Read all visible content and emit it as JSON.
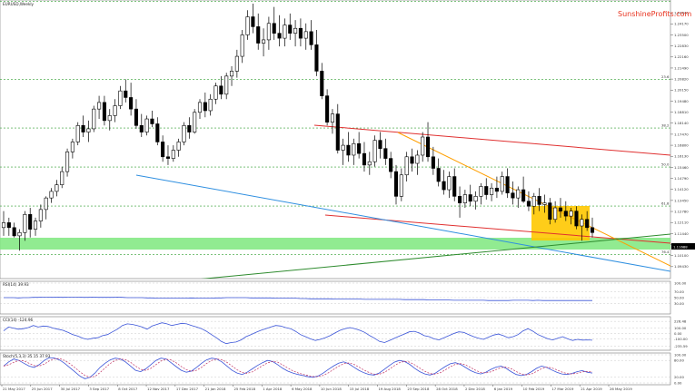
{
  "header": {
    "symbol_title": "EURUSD,Weekly",
    "brand": "SunshineProfits.com"
  },
  "colors": {
    "bull_candle": "#ffffff",
    "bear_candle": "#000000",
    "support_zone": "#7ee87e",
    "highlight_box": "#ffc800",
    "red_channel": "#e03030",
    "orange_line": "#ff9f00",
    "blue_line": "#2f8fe0",
    "green_line": "#2e8b2e",
    "oscillator_main": "#3a54d8",
    "oscillator_signal": "#c03060"
  },
  "chart_data": {
    "type": "candlestick",
    "x_labels": [
      "21 May 2017",
      "25 Jun 2017",
      "30 Jul 2017",
      "3 Sep 2017",
      "8 Oct 2017",
      "12 Nov 2017",
      "17 Dec 2017",
      "21 Jan 2018",
      "25 Feb 2018",
      "1 Apr 2018",
      "6 May 2018",
      "10 Jun 2018",
      "15 Jul 2018",
      "19 Aug 2018",
      "23 Sep 2018",
      "28 Oct 2018",
      "2 Dec 2018",
      "6 Jan 2019",
      "10 Feb 2019",
      "17 Mar 2019",
      "21 Apr 2019",
      "26 May 2019"
    ],
    "y_ticks": [
      "1.25510",
      "1.24840",
      "1.24170",
      "1.23500",
      "1.22830",
      "1.22160",
      "1.21490",
      "1.20820",
      "1.20150",
      "1.19480",
      "1.18810",
      "1.18140",
      "1.17470",
      "1.16800",
      "1.16130",
      "1.15460",
      "1.14790",
      "1.14120",
      "1.13450",
      "1.12780",
      "1.12110",
      "1.11440",
      "1.10770",
      "1.10100",
      "1.09430",
      "1.08760"
    ],
    "y_range": [
      1.0876,
      1.2551
    ],
    "current_price": "1.11688",
    "fib_labels": [
      "0.0",
      "23.6",
      "38.2",
      "50.0",
      "61.8",
      "76.4"
    ],
    "fib_levels": [
      1.2555,
      1.2079,
      1.1785,
      1.1548,
      1.1311,
      1.1016
    ],
    "candles": [
      [
        1.118,
        1.128,
        1.113,
        1.121
      ],
      [
        1.121,
        1.124,
        1.113,
        1.118
      ],
      [
        1.118,
        1.121,
        1.112,
        1.113
      ],
      [
        1.113,
        1.117,
        1.104,
        1.115
      ],
      [
        1.115,
        1.128,
        1.11,
        1.126
      ],
      [
        1.126,
        1.13,
        1.112,
        1.117
      ],
      [
        1.117,
        1.124,
        1.113,
        1.122
      ],
      [
        1.122,
        1.132,
        1.118,
        1.129
      ],
      [
        1.129,
        1.137,
        1.123,
        1.136
      ],
      [
        1.136,
        1.142,
        1.133,
        1.14
      ],
      [
        1.14,
        1.147,
        1.137,
        1.144
      ],
      [
        1.144,
        1.155,
        1.142,
        1.152
      ],
      [
        1.152,
        1.166,
        1.149,
        1.164
      ],
      [
        1.164,
        1.172,
        1.16,
        1.17
      ],
      [
        1.17,
        1.182,
        1.168,
        1.18
      ],
      [
        1.18,
        1.186,
        1.173,
        1.176
      ],
      [
        1.176,
        1.183,
        1.17,
        1.178
      ],
      [
        1.178,
        1.192,
        1.176,
        1.19
      ],
      [
        1.19,
        1.198,
        1.184,
        1.194
      ],
      [
        1.194,
        1.198,
        1.18,
        1.183
      ],
      [
        1.183,
        1.19,
        1.177,
        1.186
      ],
      [
        1.186,
        1.196,
        1.182,
        1.192
      ],
      [
        1.192,
        1.204,
        1.19,
        1.201
      ],
      [
        1.201,
        1.208,
        1.194,
        1.197
      ],
      [
        1.197,
        1.206,
        1.186,
        1.19
      ],
      [
        1.19,
        1.196,
        1.178,
        1.18
      ],
      [
        1.18,
        1.187,
        1.173,
        1.176
      ],
      [
        1.176,
        1.186,
        1.174,
        1.184
      ],
      [
        1.184,
        1.189,
        1.179,
        1.181
      ],
      [
        1.181,
        1.185,
        1.168,
        1.17
      ],
      [
        1.17,
        1.174,
        1.158,
        1.161
      ],
      [
        1.161,
        1.168,
        1.156,
        1.16
      ],
      [
        1.16,
        1.168,
        1.158,
        1.165
      ],
      [
        1.165,
        1.172,
        1.161,
        1.17
      ],
      [
        1.17,
        1.182,
        1.168,
        1.18
      ],
      [
        1.18,
        1.185,
        1.172,
        1.176
      ],
      [
        1.176,
        1.19,
        1.175,
        1.188
      ],
      [
        1.188,
        1.196,
        1.184,
        1.194
      ],
      [
        1.194,
        1.2,
        1.185,
        1.189
      ],
      [
        1.189,
        1.199,
        1.186,
        1.196
      ],
      [
        1.196,
        1.206,
        1.193,
        1.204
      ],
      [
        1.204,
        1.21,
        1.196,
        1.199
      ],
      [
        1.199,
        1.212,
        1.196,
        1.21
      ],
      [
        1.21,
        1.216,
        1.204,
        1.213
      ],
      [
        1.213,
        1.226,
        1.209,
        1.222
      ],
      [
        1.222,
        1.238,
        1.218,
        1.235
      ],
      [
        1.235,
        1.25,
        1.232,
        1.246
      ],
      [
        1.246,
        1.254,
        1.236,
        1.24
      ],
      [
        1.24,
        1.248,
        1.226,
        1.23
      ],
      [
        1.23,
        1.239,
        1.222,
        1.232
      ],
      [
        1.232,
        1.246,
        1.226,
        1.242
      ],
      [
        1.242,
        1.252,
        1.232,
        1.236
      ],
      [
        1.236,
        1.247,
        1.228,
        1.233
      ],
      [
        1.233,
        1.245,
        1.228,
        1.241
      ],
      [
        1.241,
        1.248,
        1.232,
        1.236
      ],
      [
        1.236,
        1.244,
        1.228,
        1.239
      ],
      [
        1.239,
        1.245,
        1.228,
        1.233
      ],
      [
        1.233,
        1.242,
        1.226,
        1.237
      ],
      [
        1.237,
        1.244,
        1.226,
        1.229
      ],
      [
        1.229,
        1.238,
        1.21,
        1.213
      ],
      [
        1.213,
        1.218,
        1.196,
        1.198
      ],
      [
        1.198,
        1.202,
        1.18,
        1.182
      ],
      [
        1.182,
        1.19,
        1.175,
        1.187
      ],
      [
        1.187,
        1.193,
        1.163,
        1.165
      ],
      [
        1.165,
        1.172,
        1.156,
        1.168
      ],
      [
        1.168,
        1.176,
        1.158,
        1.162
      ],
      [
        1.162,
        1.172,
        1.156,
        1.169
      ],
      [
        1.169,
        1.176,
        1.16,
        1.163
      ],
      [
        1.163,
        1.17,
        1.152,
        1.156
      ],
      [
        1.156,
        1.164,
        1.15,
        1.158
      ],
      [
        1.158,
        1.174,
        1.155,
        1.171
      ],
      [
        1.171,
        1.176,
        1.16,
        1.166
      ],
      [
        1.166,
        1.172,
        1.156,
        1.16
      ],
      [
        1.16,
        1.164,
        1.148,
        1.152
      ],
      [
        1.152,
        1.156,
        1.132,
        1.137
      ],
      [
        1.137,
        1.154,
        1.134,
        1.15
      ],
      [
        1.15,
        1.164,
        1.146,
        1.161
      ],
      [
        1.161,
        1.166,
        1.152,
        1.157
      ],
      [
        1.157,
        1.165,
        1.15,
        1.162
      ],
      [
        1.162,
        1.176,
        1.158,
        1.173
      ],
      [
        1.173,
        1.182,
        1.158,
        1.161
      ],
      [
        1.161,
        1.167,
        1.15,
        1.154
      ],
      [
        1.154,
        1.16,
        1.143,
        1.146
      ],
      [
        1.146,
        1.153,
        1.138,
        1.141
      ],
      [
        1.141,
        1.152,
        1.136,
        1.149
      ],
      [
        1.149,
        1.154,
        1.134,
        1.137
      ],
      [
        1.137,
        1.143,
        1.124,
        1.133
      ],
      [
        1.133,
        1.141,
        1.13,
        1.138
      ],
      [
        1.138,
        1.144,
        1.131,
        1.134
      ],
      [
        1.134,
        1.14,
        1.129,
        1.137
      ],
      [
        1.137,
        1.145,
        1.132,
        1.143
      ],
      [
        1.143,
        1.148,
        1.135,
        1.138
      ],
      [
        1.138,
        1.145,
        1.134,
        1.142
      ],
      [
        1.142,
        1.149,
        1.136,
        1.14
      ],
      [
        1.14,
        1.152,
        1.138,
        1.149
      ],
      [
        1.149,
        1.154,
        1.136,
        1.139
      ],
      [
        1.139,
        1.146,
        1.132,
        1.136
      ],
      [
        1.136,
        1.143,
        1.13,
        1.141
      ],
      [
        1.141,
        1.149,
        1.133,
        1.134
      ],
      [
        1.134,
        1.14,
        1.128,
        1.131
      ],
      [
        1.131,
        1.139,
        1.126,
        1.137
      ],
      [
        1.137,
        1.142,
        1.128,
        1.132
      ],
      [
        1.132,
        1.138,
        1.127,
        1.133
      ],
      [
        1.133,
        1.136,
        1.12,
        1.123
      ],
      [
        1.123,
        1.134,
        1.121,
        1.13
      ],
      [
        1.13,
        1.136,
        1.124,
        1.128
      ],
      [
        1.128,
        1.134,
        1.122,
        1.125
      ],
      [
        1.125,
        1.13,
        1.12,
        1.128
      ],
      [
        1.128,
        1.131,
        1.117,
        1.119
      ],
      [
        1.119,
        1.126,
        1.11,
        1.123
      ],
      [
        1.123,
        1.128,
        1.116,
        1.118
      ],
      [
        1.118,
        1.124,
        1.112,
        1.115
      ]
    ],
    "oscillators": [
      {
        "name": "RSI(14) 39.93",
        "y_range": [
          0,
          100
        ],
        "y_ticks": [
          {
            "label": "100.00",
            "value": 100
          },
          {
            "label": "70.00",
            "value": 70
          },
          {
            "label": "50.00",
            "value": 50
          },
          {
            "label": "30.00",
            "value": 30
          }
        ],
        "series": [
          [
            50,
            50,
            50,
            49,
            50,
            50,
            51,
            51,
            52,
            52,
            51,
            52,
            51,
            52,
            52,
            52,
            51,
            51,
            52,
            51,
            51,
            51,
            51,
            52,
            51,
            50,
            50,
            50,
            50,
            49,
            49,
            48,
            48,
            48,
            48,
            48,
            48,
            48,
            49,
            48,
            48,
            48,
            48,
            49,
            49,
            50,
            50,
            50,
            50,
            50,
            49,
            49,
            49,
            49,
            49,
            48,
            48,
            48,
            48,
            48,
            47,
            47,
            46,
            46,
            46,
            46,
            46,
            45,
            45,
            45,
            45,
            45,
            45,
            44,
            44,
            44,
            44,
            44,
            44,
            44,
            44,
            43,
            43,
            43,
            43,
            43,
            42,
            42,
            42,
            42,
            42,
            41,
            41,
            41,
            41,
            41,
            41,
            41,
            40,
            40,
            40,
            40,
            40,
            41,
            41,
            41,
            41,
            40,
            41,
            40,
            40,
            40,
            40,
            40,
            40,
            40,
            40,
            40,
            40,
            40
          ]
        ]
      },
      {
        "name": "CCI(14) -124.96",
        "y_range": [
          -280,
          280
        ],
        "y_ticks": [
          {
            "label": "226.48",
            "value": 226.48
          },
          {
            "label": "100.00",
            "value": 100
          },
          {
            "label": "0.00",
            "value": 0
          },
          {
            "label": "-100.00",
            "value": -100
          },
          {
            "label": "-235.59",
            "value": -235.59
          }
        ],
        "series": [
          [
            50,
            120,
            100,
            80,
            90,
            110,
            150,
            120,
            140,
            130,
            100,
            80,
            60,
            20,
            -20,
            -50,
            -90,
            -110,
            -90,
            -80,
            -40,
            -20,
            30,
            80,
            150,
            180,
            170,
            150,
            120,
            80,
            140,
            170,
            200,
            180,
            150,
            170,
            190,
            180,
            150,
            120,
            90,
            40,
            -20,
            -80,
            -150,
            -190,
            -170,
            -160,
            -120,
            -60,
            -20,
            20,
            60,
            90,
            120,
            150,
            140,
            110,
            90,
            40,
            -20,
            -60,
            -100,
            -130,
            -110,
            -80,
            -40,
            10,
            60,
            90,
            110,
            90,
            60,
            20,
            -40,
            -90,
            -150,
            -170,
            -130,
            -90,
            -50,
            -10,
            30,
            40,
            10,
            -40,
            -60,
            -100,
            -120,
            -80,
            -40,
            0,
            30,
            20,
            -20,
            -60,
            -90,
            -110,
            -70,
            -30,
            -10,
            -40,
            -80,
            -60,
            -20,
            50,
            90,
            40,
            -20,
            -60,
            -100,
            -120,
            -90,
            -60,
            -100,
            -130,
            -110,
            -124,
            -120,
            -125
          ]
        ]
      },
      {
        "name": "Stoch(5,3,3) 35.15 37.93",
        "y_range": [
          0,
          100
        ],
        "y_ticks": [
          {
            "label": "100.00",
            "value": 100
          },
          {
            "label": "80.00",
            "value": 80
          },
          {
            "label": "20.00",
            "value": 20
          },
          {
            "label": "0.00",
            "value": 0
          }
        ],
        "series": [
          [
            60,
            75,
            85,
            80,
            70,
            60,
            55,
            65,
            80,
            90,
            88,
            82,
            70,
            55,
            40,
            25,
            15,
            20,
            35,
            55,
            70,
            82,
            88,
            85,
            75,
            60,
            45,
            40,
            50,
            65,
            80,
            88,
            85,
            72,
            58,
            45,
            38,
            42,
            55,
            70,
            82,
            88,
            85,
            75,
            60,
            45,
            35,
            30,
            38,
            50,
            62,
            72,
            80,
            76,
            65,
            52,
            42,
            35,
            30,
            26,
            22,
            20,
            25,
            35,
            48,
            60,
            70,
            75,
            68,
            56,
            45,
            36,
            30,
            28,
            35,
            48,
            62,
            74,
            80,
            76,
            66,
            52,
            40,
            32,
            28,
            34,
            46,
            58,
            68,
            72,
            66,
            55,
            44,
            36,
            32,
            38,
            48,
            56,
            60,
            52,
            40,
            30,
            26,
            30,
            40,
            52,
            60,
            55,
            46,
            38,
            32,
            30,
            34,
            40,
            44,
            38,
            35
          ]
        ]
      }
    ]
  }
}
